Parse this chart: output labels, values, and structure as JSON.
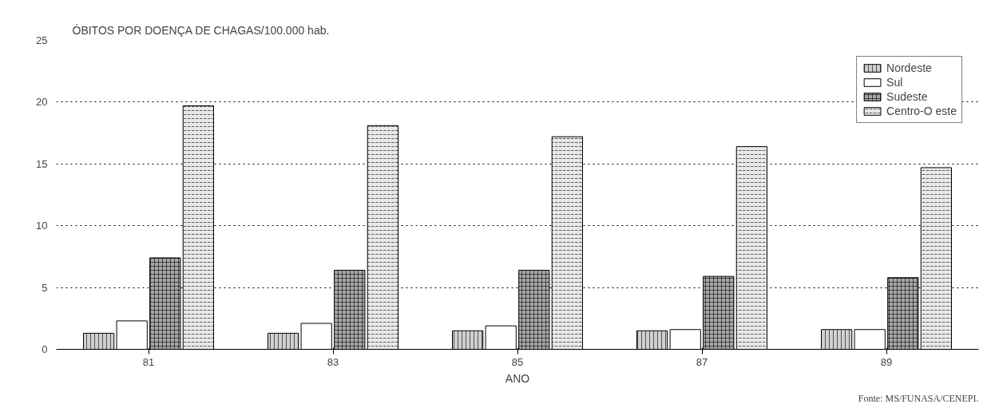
{
  "chart_data": {
    "type": "bar",
    "title": "ÓBITOS POR DOENÇA DE CHAGAS/100.000 hab.",
    "xlabel": "ANO",
    "categories": [
      "81",
      "83",
      "85",
      "87",
      "89"
    ],
    "series": [
      {
        "name": "Nordeste",
        "color": "#d0d0d0",
        "values": [
          1.3,
          1.3,
          1.5,
          1.5,
          1.6
        ]
      },
      {
        "name": "Sul",
        "color": "#ffffff",
        "values": [
          2.3,
          2.1,
          1.9,
          1.6,
          1.6
        ]
      },
      {
        "name": "Sudeste",
        "color": "#a8a8a8",
        "values": [
          7.4,
          6.4,
          6.4,
          5.9,
          5.8
        ]
      },
      {
        "name": "Centro-O este",
        "color": "#e8e8e8",
        "values": [
          19.7,
          18.1,
          17.2,
          16.4,
          14.7
        ]
      }
    ],
    "ylim": [
      0,
      25
    ],
    "yticks": [
      0,
      5,
      10,
      15,
      20,
      25
    ],
    "grid": "y",
    "legend": "top right",
    "line_style": "dashed",
    "annotations": [
      "Fonte: MS/FUNASA/CENEPI."
    ]
  }
}
